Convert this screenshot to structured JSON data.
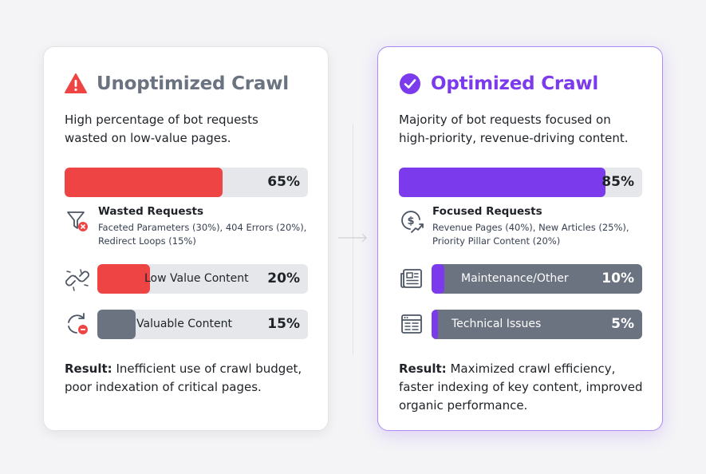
{
  "left": {
    "title": "Unoptimized Crawl",
    "title_icon": "warning-icon",
    "description": "High percentage of bot requests wasted on low-value pages.",
    "main_bar": {
      "value": 65,
      "label": "65%",
      "color": "#ef4444"
    },
    "detail": {
      "icon": "filter-error-icon",
      "title": "Wasted Requests",
      "text": "Faceted Parameters (30%), 404 Errors (20%), Redirect Loops (15%)"
    },
    "rows": [
      {
        "icon": "broken-link-icon",
        "label": "Low Value Content",
        "value": 20,
        "pct": "20%",
        "color": "#ef4444"
      },
      {
        "icon": "refresh-error-icon",
        "label": "Valuable Content",
        "value": 15,
        "pct": "15%",
        "color": "#6b7280"
      }
    ],
    "result_label": "Result:",
    "result_text": "Inefficient use of crawl budget, poor indexation of critical pages."
  },
  "right": {
    "title": "Optimized Crawl",
    "title_icon": "check-circle-icon",
    "description": "Majority of bot requests focused on high-priority, revenue-driving content.",
    "main_bar": {
      "value": 85,
      "label": "85%",
      "color": "#7c3aed"
    },
    "detail": {
      "icon": "dollar-growth-icon",
      "title": "Focused Requests",
      "text": "Revenue Pages (40%), New Articles (25%), Priority Pillar Content (20%)"
    },
    "rows": [
      {
        "icon": "newspaper-icon",
        "label": "Maintenance/Other",
        "value": 10,
        "pct": "10%",
        "color": "#7c3aed"
      },
      {
        "icon": "browser-layout-icon",
        "label": "Technical Issues",
        "value": 5,
        "pct": "5%",
        "color": "#7c3aed"
      }
    ],
    "result_label": "Result:",
    "result_text": "Maximized crawl efficiency, faster indexing of key content, improved organic performance."
  },
  "connector_icon": "arrow-right-icon"
}
